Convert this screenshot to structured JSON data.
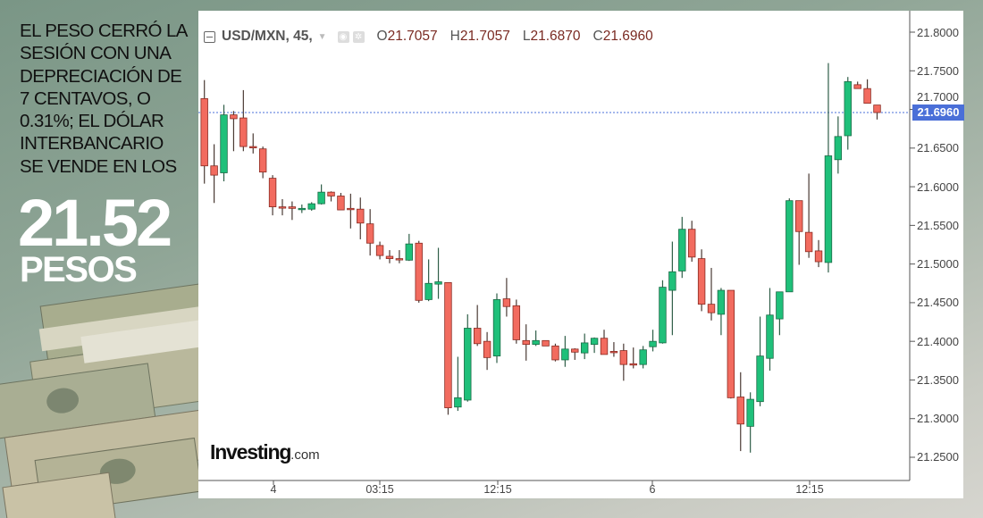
{
  "infographic": {
    "headline_lines": [
      "EL PESO CERRÓ LA",
      "SESIÓN CON UNA",
      "DEPRECIACIÓN DE",
      "7 CENTAVOS, O",
      "0.31%; EL DÓLAR",
      "INTERBANCARIO",
      "SE VENDE EN LOS"
    ],
    "big_number": "21.52",
    "unit": "PESOS"
  },
  "chart_header": {
    "symbol": "USD/MXN, 45,",
    "icons": [
      "collapse-icon",
      "dropdown-arrow-icon",
      "eye-icon",
      "gear-icon"
    ],
    "open_label": "O",
    "open": "21.7057",
    "high_label": "H",
    "high": "21.7057",
    "low_label": "L",
    "low": "21.6870",
    "close_label": "C",
    "close": "21.6960"
  },
  "logo": {
    "name": "Investing",
    "suffix": ".com"
  },
  "chart_data": {
    "type": "candlestick",
    "title": "USD/MXN, 45",
    "ylim": [
      21.23,
      21.81
    ],
    "y_ticks": [
      "21.8000",
      "21.7500",
      "21.7000",
      "21.6500",
      "21.6000",
      "21.5500",
      "21.5000",
      "21.4500",
      "21.4000",
      "21.3500",
      "21.3000",
      "21.2500"
    ],
    "x_tick_labels": [
      "4",
      "03:15",
      "12:15",
      "6",
      "12:15"
    ],
    "last_price": "21.6960",
    "last_price_value": 21.696,
    "grid": false,
    "colors": {
      "up": "#1fc07a",
      "down": "#f26b5f",
      "last_price_line": "#4a6fd8"
    },
    "candles_ohlc": [
      [
        21.714,
        21.738,
        21.604,
        21.627
      ],
      [
        21.627,
        21.655,
        21.579,
        21.615
      ],
      [
        21.618,
        21.706,
        21.607,
        21.693
      ],
      [
        21.693,
        21.698,
        21.646,
        21.688
      ],
      [
        21.689,
        21.725,
        21.646,
        21.652
      ],
      [
        21.652,
        21.669,
        21.643,
        21.651
      ],
      [
        21.649,
        21.652,
        21.611,
        21.619
      ],
      [
        21.611,
        21.615,
        21.563,
        21.574
      ],
      [
        21.574,
        21.584,
        21.563,
        21.573
      ],
      [
        21.574,
        21.581,
        21.557,
        21.572
      ],
      [
        21.572,
        21.577,
        21.566,
        21.572
      ],
      [
        21.571,
        21.58,
        21.569,
        21.578
      ],
      [
        21.578,
        21.603,
        21.577,
        21.593
      ],
      [
        21.593,
        21.594,
        21.581,
        21.588
      ],
      [
        21.588,
        21.592,
        21.57,
        21.57
      ],
      [
        21.572,
        21.591,
        21.546,
        21.571
      ],
      [
        21.571,
        21.586,
        21.532,
        21.553
      ],
      [
        21.552,
        21.571,
        21.511,
        21.527
      ],
      [
        21.524,
        21.529,
        21.506,
        21.511
      ],
      [
        21.51,
        21.518,
        21.501,
        21.507
      ],
      [
        21.507,
        21.518,
        21.501,
        21.506
      ],
      [
        21.505,
        21.539,
        21.504,
        21.526
      ],
      [
        21.527,
        21.53,
        21.45,
        21.453
      ],
      [
        21.454,
        21.506,
        21.452,
        21.475
      ],
      [
        21.474,
        21.521,
        21.455,
        21.477
      ],
      [
        21.476,
        21.476,
        21.305,
        21.314
      ],
      [
        21.315,
        21.38,
        21.31,
        21.327
      ],
      [
        21.324,
        21.435,
        21.322,
        21.417
      ],
      [
        21.417,
        21.447,
        21.394,
        21.397
      ],
      [
        21.4,
        21.412,
        21.363,
        21.379
      ],
      [
        21.381,
        21.462,
        21.372,
        21.454
      ],
      [
        21.455,
        21.482,
        21.432,
        21.445
      ],
      [
        21.446,
        21.454,
        21.397,
        21.402
      ],
      [
        21.401,
        21.422,
        21.375,
        21.396
      ],
      [
        21.396,
        21.414,
        21.394,
        21.401
      ],
      [
        21.401,
        21.401,
        21.394,
        21.394
      ],
      [
        21.394,
        21.397,
        21.374,
        21.376
      ],
      [
        21.376,
        21.407,
        21.367,
        21.39
      ],
      [
        21.39,
        21.391,
        21.376,
        21.386
      ],
      [
        21.385,
        21.41,
        21.377,
        21.398
      ],
      [
        21.396,
        21.405,
        21.385,
        21.404
      ],
      [
        21.404,
        21.415,
        21.383,
        21.383
      ],
      [
        21.387,
        21.399,
        21.38,
        21.386
      ],
      [
        21.388,
        21.397,
        21.349,
        21.37
      ],
      [
        21.371,
        21.392,
        21.365,
        21.37
      ],
      [
        21.37,
        21.394,
        21.365,
        21.389
      ],
      [
        21.393,
        21.415,
        21.387,
        21.4
      ],
      [
        21.398,
        21.479,
        21.397,
        21.47
      ],
      [
        21.466,
        21.529,
        21.408,
        21.49
      ],
      [
        21.491,
        21.561,
        21.482,
        21.545
      ],
      [
        21.545,
        21.556,
        21.503,
        21.509
      ],
      [
        21.507,
        21.519,
        21.439,
        21.448
      ],
      [
        21.448,
        21.495,
        21.427,
        21.437
      ],
      [
        21.435,
        21.469,
        21.408,
        21.466
      ],
      [
        21.466,
        21.466,
        21.326,
        21.327
      ],
      [
        21.328,
        21.36,
        21.258,
        21.293
      ],
      [
        21.29,
        21.334,
        21.256,
        21.325
      ],
      [
        21.322,
        21.432,
        21.316,
        21.381
      ],
      [
        21.378,
        21.469,
        21.362,
        21.434
      ],
      [
        21.429,
        21.464,
        21.408,
        21.464
      ],
      [
        21.464,
        21.585,
        21.464,
        21.582
      ],
      [
        21.582,
        21.582,
        21.499,
        21.542
      ],
      [
        21.541,
        21.617,
        21.508,
        21.516
      ],
      [
        21.517,
        21.531,
        21.496,
        21.503
      ],
      [
        21.502,
        21.76,
        21.489,
        21.64
      ],
      [
        21.635,
        21.691,
        21.617,
        21.665
      ],
      [
        21.666,
        21.742,
        21.648,
        21.736
      ],
      [
        21.732,
        21.736,
        21.727,
        21.727
      ],
      [
        21.727,
        21.739,
        21.708,
        21.708
      ],
      [
        21.7057,
        21.7057,
        21.687,
        21.696
      ]
    ]
  }
}
